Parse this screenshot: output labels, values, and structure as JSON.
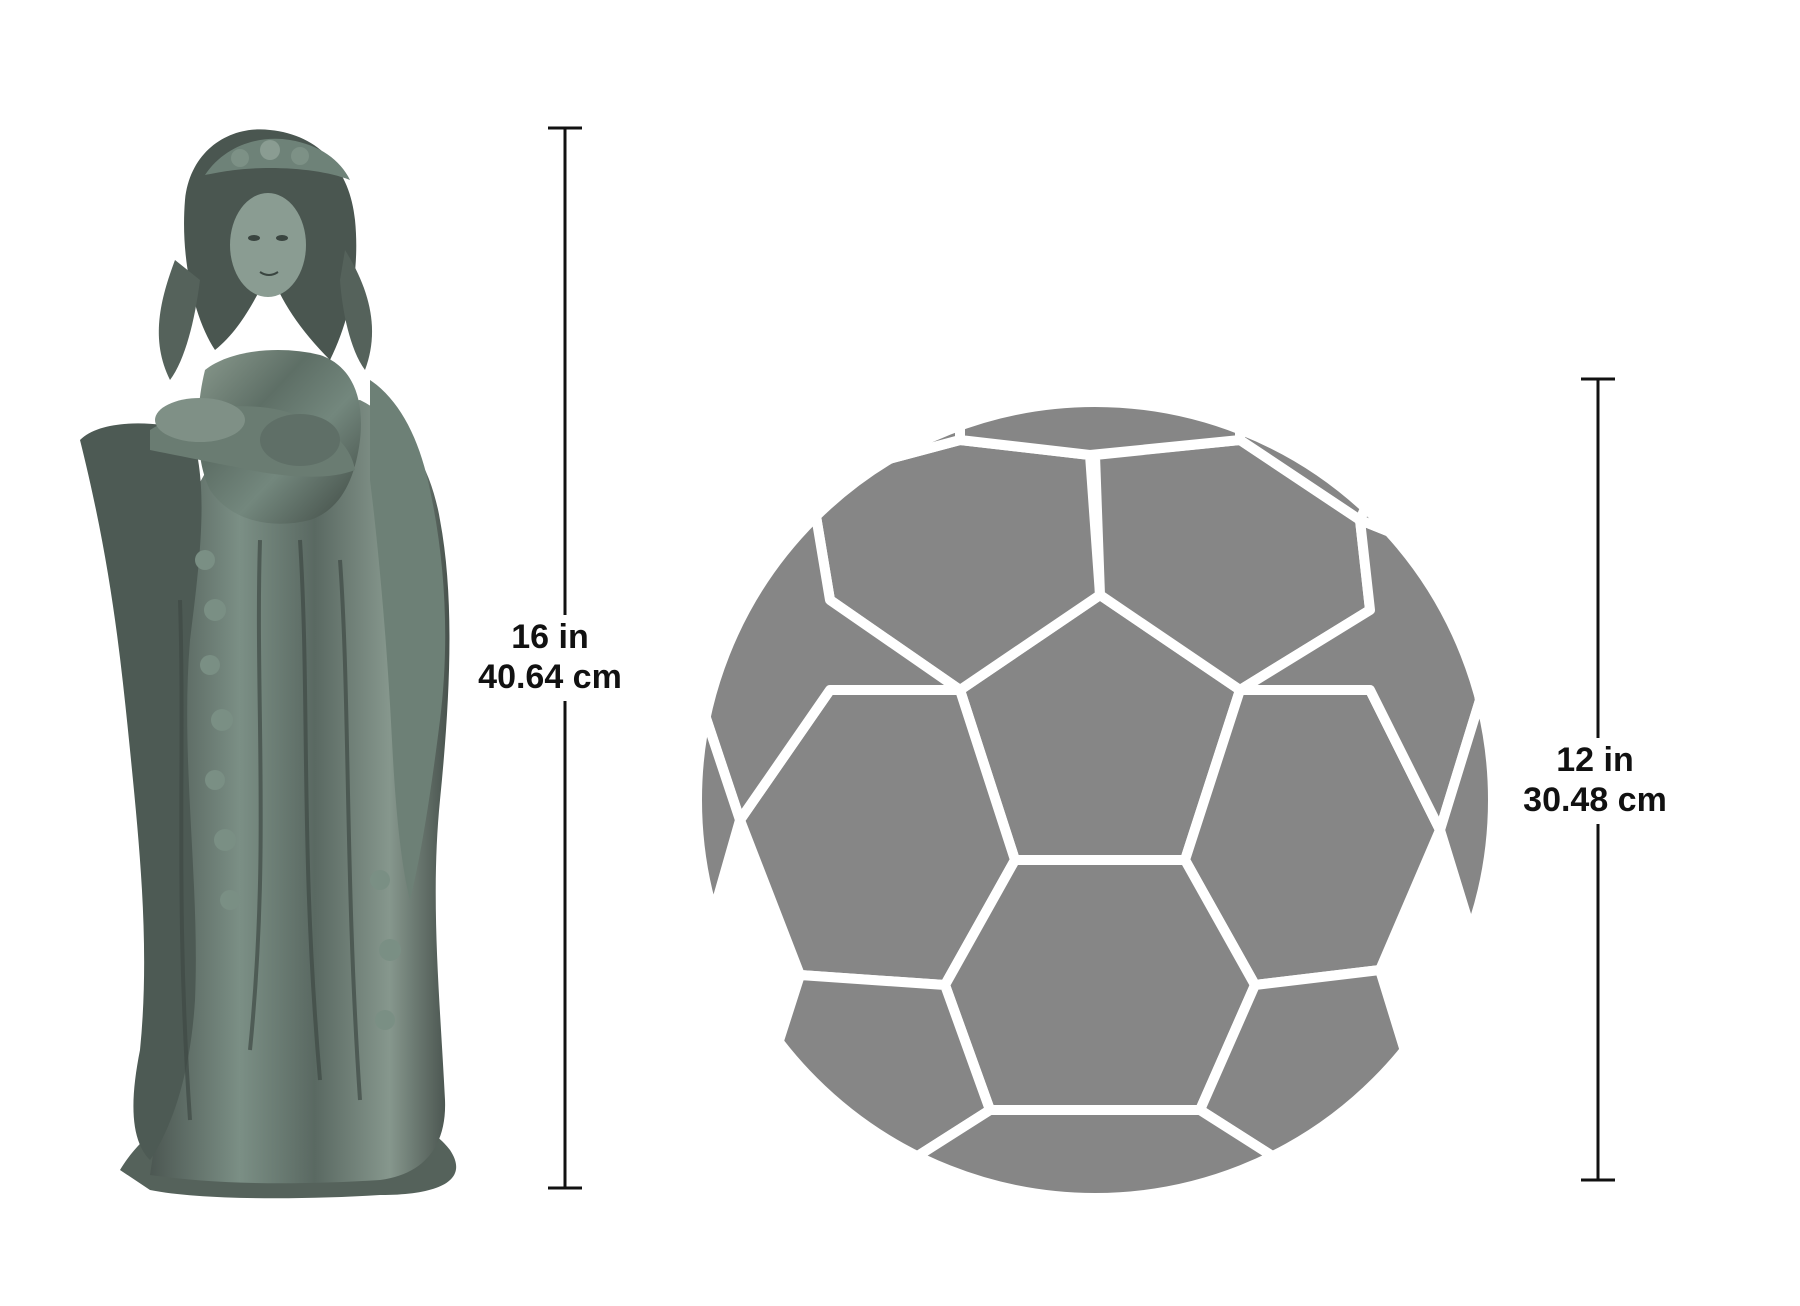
{
  "statue": {
    "name": "garden statue",
    "height_in": "16 in",
    "height_cm": "40.64 cm"
  },
  "ball": {
    "name": "soccer ball",
    "height_in": "12 in",
    "height_cm": "30.48 cm"
  },
  "colors": {
    "background": "#ffffff",
    "ball_panel": "#868686",
    "ball_seam": "#ffffff",
    "measure_line": "#111111",
    "statue_bronze": "#5f6b62",
    "statue_verdigris": "#6f8a7c"
  }
}
